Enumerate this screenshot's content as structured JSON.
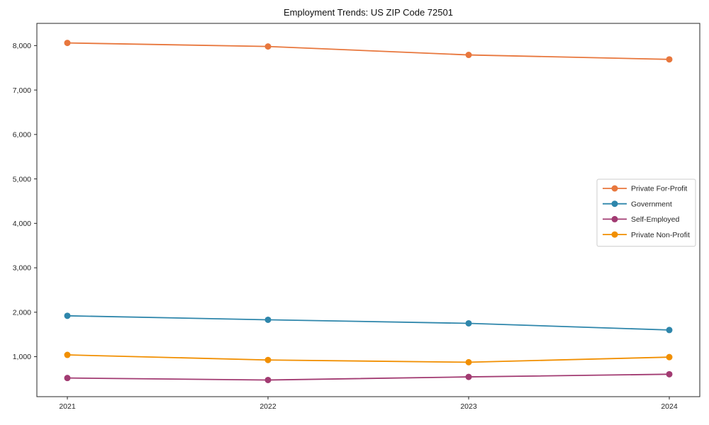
{
  "figure": {
    "background": "#ffffff"
  },
  "chart_data": {
    "type": "line",
    "title": "Employment Trends: US ZIP Code 72501",
    "x": [
      "2021",
      "2022",
      "2023",
      "2024"
    ],
    "series": [
      {
        "name": "Private For-Profit",
        "color": "#e8773d",
        "values": [
          8060,
          7980,
          7790,
          7690
        ]
      },
      {
        "name": "Government",
        "color": "#2e86ab",
        "values": [
          1920,
          1830,
          1750,
          1600
        ]
      },
      {
        "name": "Self-Employed",
        "color": "#a23b72",
        "values": [
          520,
          475,
          545,
          605
        ]
      },
      {
        "name": "Private Non-Profit",
        "color": "#f18f01",
        "values": [
          1040,
          925,
          875,
          990
        ]
      }
    ],
    "xlabel": "",
    "ylabel": "",
    "ylim": [
      100,
      8500
    ],
    "yticks": [
      1000,
      2000,
      3000,
      4000,
      5000,
      6000,
      7000,
      8000
    ],
    "ytick_labels": [
      "1,000",
      "2,000",
      "3,000",
      "4,000",
      "5,000",
      "6,000",
      "7,000",
      "8,000"
    ],
    "grid": false,
    "legend_position": "center-right",
    "axis_color": "#262626",
    "legend_border_color": "#cccccc"
  }
}
